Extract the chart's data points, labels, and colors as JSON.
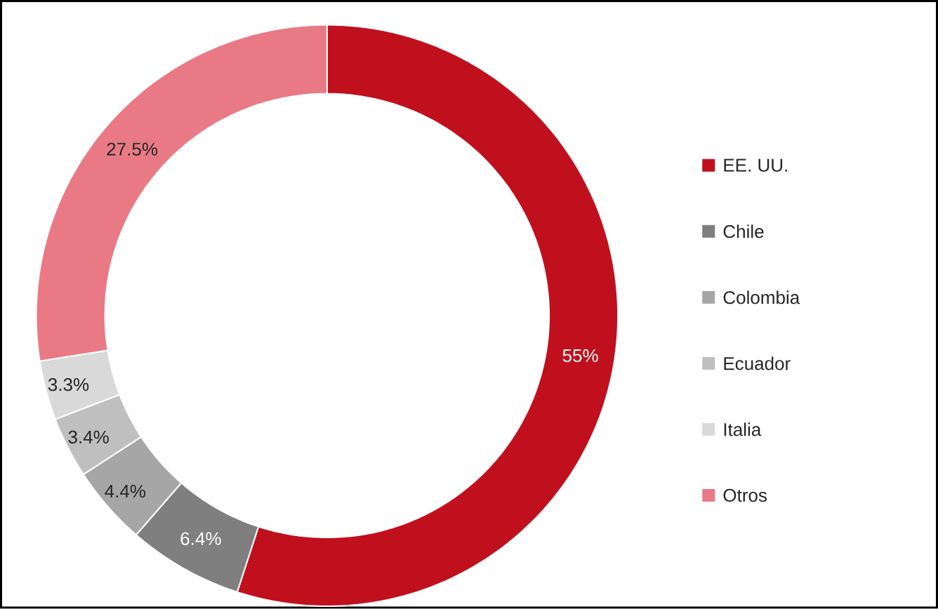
{
  "chart_data": {
    "type": "donut",
    "categories": [
      "EE. UU.",
      "Chile",
      "Colombia",
      "Ecuador",
      "Italia",
      "Otros"
    ],
    "values": [
      55,
      6.4,
      4.4,
      3.4,
      3.3,
      27.5
    ],
    "colors": [
      "#c0101e",
      "#7f7f7f",
      "#a6a6a6",
      "#bfbfbf",
      "#d9d9d9",
      "#e97a85"
    ],
    "value_labels": [
      "55%",
      "6.4%",
      "4.4%",
      "3.4%",
      "3.3%",
      "27.5%"
    ],
    "legend": "right"
  }
}
